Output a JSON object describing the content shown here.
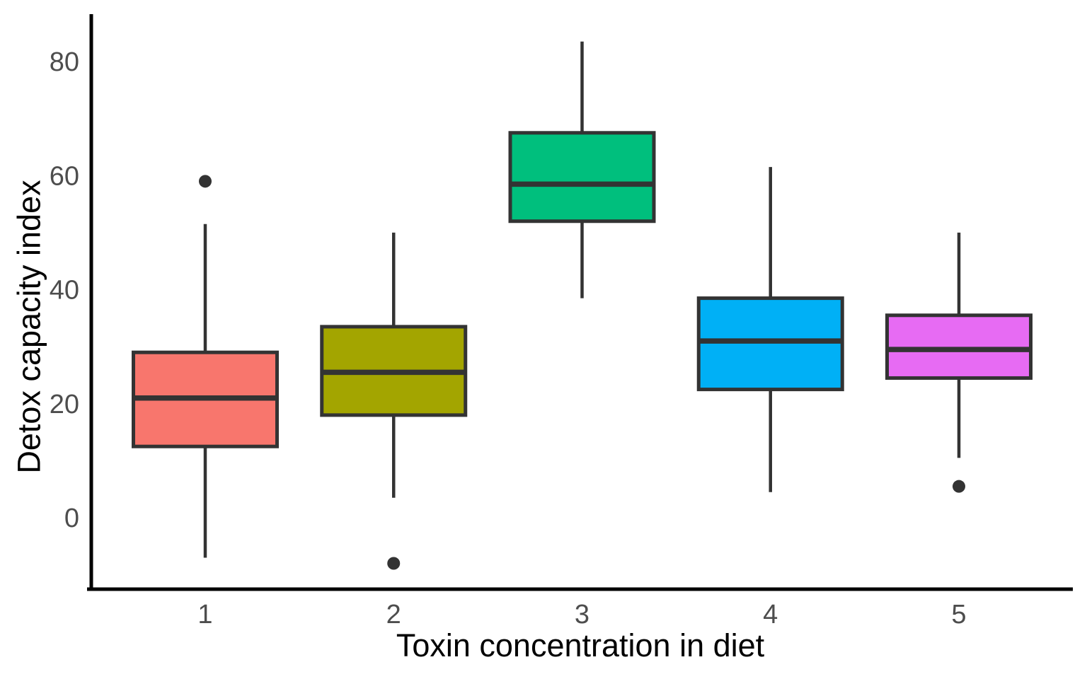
{
  "chart_data": {
    "type": "boxplot",
    "title": "",
    "xlabel": "Toxin concentration in diet",
    "ylabel": "Detox capacity index",
    "categories": [
      "1",
      "2",
      "3",
      "4",
      "5"
    ],
    "y_ticks": [
      0,
      20,
      40,
      60,
      80
    ],
    "ylim": [
      -12.5,
      88.5
    ],
    "grid": "off",
    "legend": "none",
    "colors": {
      "box_fills": [
        "#F8766D",
        "#A3A500",
        "#00BF7D",
        "#00B0F6",
        "#E76BF3"
      ],
      "box_border": "#333333",
      "outlier": "#333333",
      "axis_line": "#000000",
      "tick_label": "#4D4D4D",
      "axis_title": "#000000",
      "background": "#FFFFFF"
    },
    "series": [
      {
        "category": "1",
        "fill": "#F8766D",
        "whisker_low": -7,
        "q1": 12.5,
        "median": 21,
        "q3": 29,
        "whisker_high": 51.5,
        "outliers": [
          59
        ]
      },
      {
        "category": "2",
        "fill": "#A3A500",
        "whisker_low": 3.5,
        "q1": 18,
        "median": 25.5,
        "q3": 33.5,
        "whisker_high": 50,
        "outliers": [
          -8
        ]
      },
      {
        "category": "3",
        "fill": "#00BF7D",
        "whisker_low": 38.5,
        "q1": 52,
        "median": 58.5,
        "q3": 67.5,
        "whisker_high": 83.5,
        "outliers": []
      },
      {
        "category": "4",
        "fill": "#00B0F6",
        "whisker_low": 4.5,
        "q1": 22.5,
        "median": 31,
        "q3": 38.5,
        "whisker_high": 61.5,
        "outliers": []
      },
      {
        "category": "5",
        "fill": "#E76BF3",
        "whisker_low": 10.5,
        "q1": 24.5,
        "median": 29.5,
        "q3": 35.5,
        "whisker_high": 50,
        "outliers": [
          5.5
        ]
      }
    ]
  }
}
